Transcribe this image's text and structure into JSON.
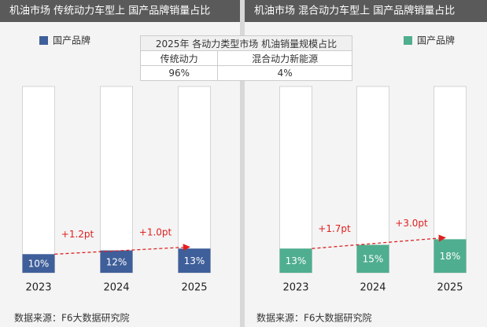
{
  "chart_data": [
    {
      "type": "bar",
      "title": "机油市场 传统动力车型上 国产品牌销量占比",
      "categories": [
        "2023",
        "2024",
        "2025"
      ],
      "series": [
        {
          "name": "国产品牌",
          "color": "#3f5f9a",
          "values": [
            10,
            12,
            13
          ],
          "value_labels": [
            "10%",
            "12%",
            "13%"
          ]
        }
      ],
      "ylim": [
        0,
        100
      ],
      "annotations": [
        "+1.2pt",
        "+1.0pt"
      ],
      "source": "数据来源：F6大数据研究院"
    },
    {
      "type": "bar",
      "title": "机油市场 混合动力车型上 国产品牌销量占比",
      "categories": [
        "2023",
        "2024",
        "2025"
      ],
      "series": [
        {
          "name": "国产品牌",
          "color": "#4fae8f",
          "values": [
            13,
            15,
            18
          ],
          "value_labels": [
            "13%",
            "15%",
            "18%"
          ]
        }
      ],
      "ylim": [
        0,
        100
      ],
      "annotations": [
        "+1.7pt",
        "+3.0pt"
      ],
      "source": "数据来源：F6大数据研究院"
    }
  ],
  "table": {
    "title": "2025年 各动力类型市场 机油销量规模占比",
    "header": [
      "传统动力",
      "混合动力新能源"
    ],
    "rows": [
      [
        "96%",
        "4%"
      ]
    ]
  }
}
